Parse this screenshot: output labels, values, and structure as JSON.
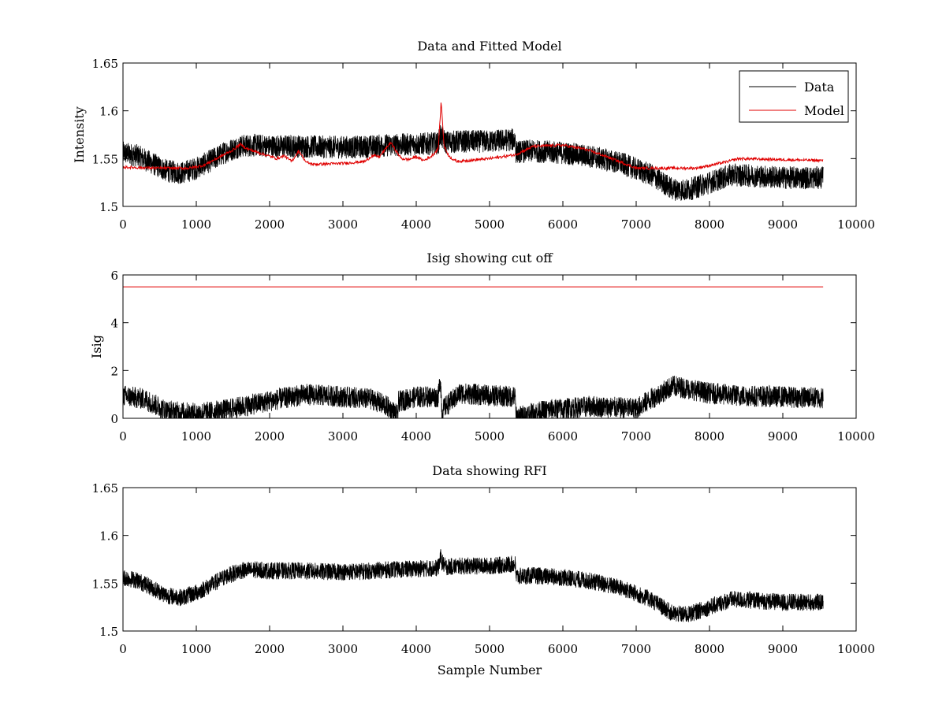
{
  "chart_data": [
    {
      "type": "line",
      "title": "Data and Fitted Model",
      "xlabel": "",
      "ylabel": "Intensity",
      "xlim": [
        0,
        10000
      ],
      "ylim": [
        1.5,
        1.65
      ],
      "xticks": [
        0,
        1000,
        2000,
        3000,
        4000,
        5000,
        6000,
        7000,
        8000,
        9000,
        10000
      ],
      "yticks": [
        1.5,
        1.55,
        1.6,
        1.65
      ],
      "yticklabels": [
        "1.5",
        "1.55",
        "1.6",
        "1.65"
      ],
      "grid": false,
      "legend": {
        "placement": "top-right",
        "entries": [
          "Data",
          "Model"
        ]
      },
      "noise_band": 0.012,
      "series": [
        {
          "name": "Data",
          "color": "#000000",
          "x": [
            0,
            200,
            400,
            600,
            800,
            1000,
            1200,
            1400,
            1600,
            1800,
            2000,
            2400,
            2800,
            3200,
            3600,
            4000,
            4300,
            4330,
            4350,
            4400,
            4600,
            5000,
            5350,
            5360,
            5600,
            6000,
            6400,
            6800,
            7200,
            7500,
            7700,
            8000,
            8300,
            8600,
            9000,
            9550
          ],
          "values": [
            1.556,
            1.553,
            1.545,
            1.537,
            1.535,
            1.54,
            1.548,
            1.557,
            1.563,
            1.564,
            1.563,
            1.563,
            1.562,
            1.562,
            1.564,
            1.565,
            1.566,
            1.575,
            1.572,
            1.567,
            1.568,
            1.568,
            1.57,
            1.557,
            1.558,
            1.556,
            1.552,
            1.545,
            1.533,
            1.518,
            1.517,
            1.525,
            1.533,
            1.532,
            1.53,
            1.53
          ]
        },
        {
          "name": "Model",
          "color": "#e00000",
          "x": [
            0,
            500,
            900,
            1100,
            1300,
            1500,
            1600,
            1700,
            1900,
            2100,
            2200,
            2300,
            2400,
            2500,
            2600,
            3000,
            3300,
            3400,
            3500,
            3650,
            3750,
            3800,
            3900,
            4000,
            4100,
            4200,
            4300,
            4340,
            4380,
            4450,
            4550,
            5000,
            5350,
            5600,
            6000,
            6300,
            6600,
            7000,
            7600,
            7800,
            7950,
            8200,
            8400,
            9550
          ],
          "values": [
            1.541,
            1.54,
            1.54,
            1.543,
            1.551,
            1.559,
            1.565,
            1.56,
            1.555,
            1.55,
            1.553,
            1.547,
            1.558,
            1.546,
            1.544,
            1.545,
            1.547,
            1.553,
            1.552,
            1.567,
            1.555,
            1.55,
            1.549,
            1.552,
            1.548,
            1.552,
            1.56,
            1.61,
            1.563,
            1.552,
            1.547,
            1.55,
            1.554,
            1.563,
            1.564,
            1.56,
            1.552,
            1.54,
            1.54,
            1.54,
            1.542,
            1.546,
            1.55,
            1.548
          ]
        }
      ]
    },
    {
      "type": "line",
      "title": "Isig showing cut off",
      "xlabel": "",
      "ylabel": "Isig",
      "xlim": [
        0,
        10000
      ],
      "ylim": [
        0,
        6
      ],
      "xticks": [
        0,
        1000,
        2000,
        3000,
        4000,
        5000,
        6000,
        7000,
        8000,
        9000,
        10000
      ],
      "yticks": [
        0,
        2,
        4,
        6
      ],
      "yticklabels": [
        "0",
        "2",
        "4",
        "6"
      ],
      "grid": false,
      "noise_band": 0.45,
      "series": [
        {
          "color": "#000000",
          "x": [
            0,
            300,
            600,
            1000,
            1400,
            1800,
            2200,
            2500,
            3000,
            3400,
            3600,
            3750,
            3760,
            4000,
            4200,
            4300,
            4330,
            4350,
            4400,
            4600,
            5000,
            5350,
            5360,
            5800,
            6400,
            7000,
            7200,
            7500,
            7600,
            8000,
            8400,
            9000,
            9550
          ],
          "values": [
            0.95,
            0.8,
            0.3,
            0.2,
            0.35,
            0.6,
            0.85,
            1.0,
            0.9,
            0.8,
            0.5,
            0.1,
            0.7,
            0.9,
            0.9,
            0.9,
            1.7,
            0.3,
            0.5,
            1.05,
            0.95,
            0.9,
            0.05,
            0.35,
            0.5,
            0.4,
            0.8,
            1.35,
            1.3,
            1.05,
            0.95,
            0.9,
            0.85
          ]
        },
        {
          "color": "#e00000",
          "x": [
            0,
            9550
          ],
          "values": [
            5.5,
            5.5
          ]
        }
      ]
    },
    {
      "type": "line",
      "title": "Data showing RFI",
      "xlabel": "Sample Number",
      "ylabel": "",
      "xlim": [
        0,
        10000
      ],
      "ylim": [
        1.5,
        1.65
      ],
      "xticks": [
        0,
        1000,
        2000,
        3000,
        4000,
        5000,
        6000,
        7000,
        8000,
        9000,
        10000
      ],
      "yticks": [
        1.5,
        1.55,
        1.6,
        1.65
      ],
      "yticklabels": [
        "1.5",
        "1.55",
        "1.6",
        "1.65"
      ],
      "grid": false,
      "noise_band": 0.009,
      "series": [
        {
          "color": "#000000",
          "x": [
            0,
            200,
            400,
            600,
            800,
            1000,
            1200,
            1400,
            1600,
            1800,
            2000,
            2400,
            2800,
            3200,
            3600,
            4000,
            4300,
            4330,
            4350,
            4400,
            4600,
            5000,
            5350,
            5360,
            5600,
            6000,
            6400,
            6800,
            7200,
            7500,
            7700,
            8000,
            8300,
            8600,
            9000,
            9550
          ],
          "values": [
            1.556,
            1.553,
            1.545,
            1.537,
            1.535,
            1.54,
            1.548,
            1.557,
            1.563,
            1.564,
            1.563,
            1.563,
            1.562,
            1.562,
            1.564,
            1.565,
            1.566,
            1.578,
            1.572,
            1.567,
            1.568,
            1.568,
            1.57,
            1.557,
            1.558,
            1.556,
            1.552,
            1.545,
            1.533,
            1.518,
            1.517,
            1.525,
            1.533,
            1.532,
            1.53,
            1.53
          ]
        }
      ]
    }
  ]
}
